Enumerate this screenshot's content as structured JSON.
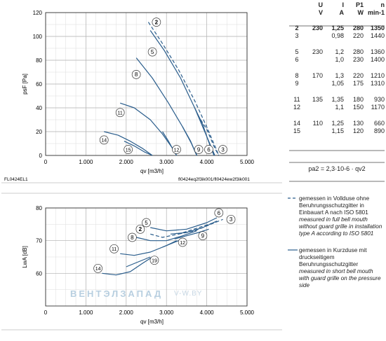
{
  "table": {
    "headers": [
      "U",
      "I",
      "P1",
      "n"
    ],
    "units": [
      "V",
      "A",
      "W",
      "min-1"
    ],
    "rows": [
      {
        "curve": "2",
        "U": "230",
        "I": "1,25",
        "P": "280",
        "n": "1350",
        "bold": true
      },
      {
        "curve": "3",
        "U": "",
        "I": "0,98",
        "P": "220",
        "n": "1440",
        "bold": false
      },
      {
        "curve": "5",
        "U": "230",
        "I": "1,2",
        "P": "280",
        "n": "1360",
        "bold": false
      },
      {
        "curve": "6",
        "U": "",
        "I": "1,0",
        "P": "230",
        "n": "1400",
        "bold": false
      },
      {
        "curve": "8",
        "U": "170",
        "I": "1,3",
        "P": "220",
        "n": "1210",
        "bold": false
      },
      {
        "curve": "9",
        "U": "",
        "I": "1,05",
        "P": "175",
        "n": "1310",
        "bold": false
      },
      {
        "curve": "11",
        "U": "135",
        "I": "1,35",
        "P": "180",
        "n": "930",
        "bold": false
      },
      {
        "curve": "12",
        "U": "",
        "I": "1,1",
        "P": "150",
        "n": "1170",
        "bold": false
      },
      {
        "curve": "14",
        "U": "110",
        "I": "1,25",
        "P": "130",
        "n": "660",
        "bold": false
      },
      {
        "curve": "15",
        "U": "",
        "I": "1,15",
        "P": "120",
        "n": "890",
        "bold": false
      }
    ],
    "formula": "pa2 = 2,3·10-6 · qv2"
  },
  "legend": {
    "dashed_de": "gemessen in Vollduse ohne Beruhrungsschutzgitter in Einbauart A nach ISO 5801",
    "dashed_en": "measured in full bell mouth without guard grille in installation type A according to ISO 5801",
    "solid_de": "gemessen in Kurzduse mit druckseitigem Beruhrungsschutzgitter",
    "solid_en": "measured in short bell mouth with guard grille on the pressure side"
  },
  "labels": {
    "left_code": "FL0424EL1",
    "right_code": "fl0424eq2f3ik001/fl0424ew2f3ik001",
    "watermark": "ВЕНТЭЛЗАПАД",
    "watermark_url": "V-W.BY"
  },
  "chart_data": [
    {
      "type": "line",
      "xlabel": "qv [m3/h]",
      "ylabel": "psF [Pa]",
      "xlim": [
        0,
        5000
      ],
      "ylim": [
        0,
        120
      ],
      "xticks": [
        0,
        1000,
        2000,
        3000,
        4000,
        5000
      ],
      "xtick_labels": [
        "0",
        "1.000",
        "2.000",
        "3.000",
        "4.000",
        "5.000"
      ],
      "yticks": [
        0,
        20,
        40,
        60,
        80,
        100,
        120
      ],
      "grid": true,
      "colors": {
        "line": "#2a5d8c",
        "grid": "#b0b0b0",
        "axis": "#333333"
      },
      "series": [
        {
          "name": "2",
          "dashed": true,
          "points": [
            [
              2550,
              112
            ],
            [
              2900,
              94
            ],
            [
              3300,
              72
            ],
            [
              3700,
              46
            ],
            [
              4000,
              24
            ],
            [
              4200,
              8
            ],
            [
              4300,
              0
            ]
          ]
        },
        {
          "name": "3",
          "dashed": true,
          "points": [
            [
              3850,
              30
            ],
            [
              4000,
              22
            ],
            [
              4100,
              14
            ],
            [
              4200,
              6
            ],
            [
              4300,
              0
            ]
          ]
        },
        {
          "name": "5",
          "dashed": false,
          "points": [
            [
              2600,
              105
            ],
            [
              2950,
              88
            ],
            [
              3350,
              65
            ],
            [
              3700,
              40
            ],
            [
              3950,
              20
            ],
            [
              4100,
              8
            ],
            [
              4200,
              0
            ]
          ]
        },
        {
          "name": "6",
          "dashed": false,
          "points": [
            [
              3700,
              40
            ],
            [
              3900,
              26
            ],
            [
              4020,
              14
            ],
            [
              4120,
              5
            ],
            [
              4180,
              0
            ]
          ]
        },
        {
          "name": "8",
          "dashed": false,
          "points": [
            [
              2250,
              82
            ],
            [
              2650,
              65
            ],
            [
              3050,
              44
            ],
            [
              3400,
              24
            ],
            [
              3620,
              10
            ],
            [
              3750,
              0
            ]
          ]
        },
        {
          "name": "9",
          "dashed": false,
          "points": [
            [
              3400,
              24
            ],
            [
              3600,
              12
            ],
            [
              3700,
              4
            ],
            [
              3760,
              0
            ]
          ]
        },
        {
          "name": "11",
          "dashed": false,
          "points": [
            [
              1850,
              44
            ],
            [
              2200,
              40
            ],
            [
              2600,
              30
            ],
            [
              2900,
              18
            ],
            [
              3150,
              6
            ],
            [
              3250,
              0
            ]
          ]
        },
        {
          "name": "12",
          "dashed": false,
          "points": [
            [
              2900,
              20
            ],
            [
              3050,
              12
            ],
            [
              3180,
              4
            ],
            [
              3250,
              0
            ]
          ]
        },
        {
          "name": "14",
          "dashed": false,
          "points": [
            [
              1450,
              20
            ],
            [
              1800,
              17
            ],
            [
              2100,
              12
            ],
            [
              2400,
              6
            ],
            [
              2650,
              0
            ]
          ]
        },
        {
          "name": "15",
          "dashed": false,
          "points": [
            [
              1950,
              12
            ],
            [
              2200,
              8
            ],
            [
              2450,
              3
            ],
            [
              2650,
              0
            ]
          ]
        }
      ],
      "markers": [
        {
          "label": "2",
          "x": 2750,
          "y": 112
        },
        {
          "label": "5",
          "x": 2650,
          "y": 87
        },
        {
          "label": "8",
          "x": 2250,
          "y": 68
        },
        {
          "label": "11",
          "x": 1850,
          "y": 36
        },
        {
          "label": "14",
          "x": 1450,
          "y": 13
        },
        {
          "label": "15",
          "x": 2050,
          "y": 5
        },
        {
          "label": "12",
          "x": 3250,
          "y": 5
        },
        {
          "label": "9",
          "x": 3800,
          "y": 5
        },
        {
          "label": "6",
          "x": 4050,
          "y": 5
        },
        {
          "label": "3",
          "x": 4400,
          "y": 5
        }
      ]
    },
    {
      "type": "line",
      "xlabel": "qv [m3/h]",
      "ylabel": "LwA [dB]",
      "xlim": [
        0,
        5000
      ],
      "ylim": [
        50,
        80
      ],
      "xticks": [
        0,
        1000,
        2000,
        3000,
        4000,
        5000
      ],
      "xtick_labels": [
        "0",
        "1.000",
        "2.000",
        "3.000",
        "4.000",
        "5.000"
      ],
      "yticks": [
        60,
        70,
        80
      ],
      "grid": true,
      "colors": {
        "line": "#2a5d8c",
        "grid": "#b0b0b0",
        "axis": "#333333"
      },
      "series": [
        {
          "name": "2",
          "dashed": true,
          "points": [
            [
              2600,
              72
            ],
            [
              2900,
              71
            ],
            [
              3300,
              72
            ],
            [
              3800,
              74
            ],
            [
              4300,
              76
            ]
          ]
        },
        {
          "name": "3",
          "dashed": true,
          "points": [
            [
              3300,
              72
            ],
            [
              3700,
              73
            ],
            [
              4100,
              75
            ],
            [
              4400,
              76.5
            ]
          ]
        },
        {
          "name": "5",
          "dashed": false,
          "points": [
            [
              2600,
              74
            ],
            [
              3000,
              73
            ],
            [
              3500,
              73.5
            ],
            [
              4000,
              75.5
            ],
            [
              4250,
              77
            ]
          ]
        },
        {
          "name": "6",
          "dashed": false,
          "points": [
            [
              3100,
              72
            ],
            [
              3500,
              72.5
            ],
            [
              3900,
              74
            ],
            [
              4250,
              76
            ]
          ]
        },
        {
          "name": "8",
          "dashed": false,
          "points": [
            [
              2250,
              71
            ],
            [
              2600,
              70
            ],
            [
              3000,
              70
            ],
            [
              3400,
              71.5
            ],
            [
              3750,
              73
            ]
          ]
        },
        {
          "name": "9",
          "dashed": false,
          "points": [
            [
              3200,
              70.5
            ],
            [
              3500,
              71.5
            ],
            [
              3800,
              72.5
            ],
            [
              4050,
              73.5
            ]
          ]
        },
        {
          "name": "11",
          "dashed": false,
          "points": [
            [
              1850,
              66
            ],
            [
              2200,
              65.5
            ],
            [
              2600,
              66.5
            ],
            [
              3000,
              68.5
            ],
            [
              3250,
              70
            ]
          ]
        },
        {
          "name": "12",
          "dashed": false,
          "points": [
            [
              2900,
              68
            ],
            [
              3100,
              69
            ],
            [
              3300,
              70
            ]
          ]
        },
        {
          "name": "14",
          "dashed": false,
          "points": [
            [
              1400,
              60
            ],
            [
              1750,
              59.5
            ],
            [
              2100,
              60.5
            ],
            [
              2400,
              63
            ],
            [
              2650,
              65
            ]
          ]
        },
        {
          "name": "15",
          "dashed": false,
          "points": [
            [
              2000,
              62
            ],
            [
              2300,
              63.5
            ],
            [
              2600,
              65
            ]
          ]
        }
      ],
      "markers": [
        {
          "label": "5",
          "x": 2500,
          "y": 75.5
        },
        {
          "label": "2",
          "x": 2350,
          "y": 73.5
        },
        {
          "label": "8",
          "x": 2150,
          "y": 71
        },
        {
          "label": "11",
          "x": 1700,
          "y": 67.5
        },
        {
          "label": "14",
          "x": 1300,
          "y": 61.5
        },
        {
          "label": "19",
          "x": 2700,
          "y": 64
        },
        {
          "label": "12",
          "x": 3400,
          "y": 69.5
        },
        {
          "label": "9",
          "x": 3900,
          "y": 71.5
        },
        {
          "label": "6",
          "x": 4300,
          "y": 78.5
        },
        {
          "label": "3",
          "x": 4600,
          "y": 76.5
        }
      ]
    }
  ]
}
